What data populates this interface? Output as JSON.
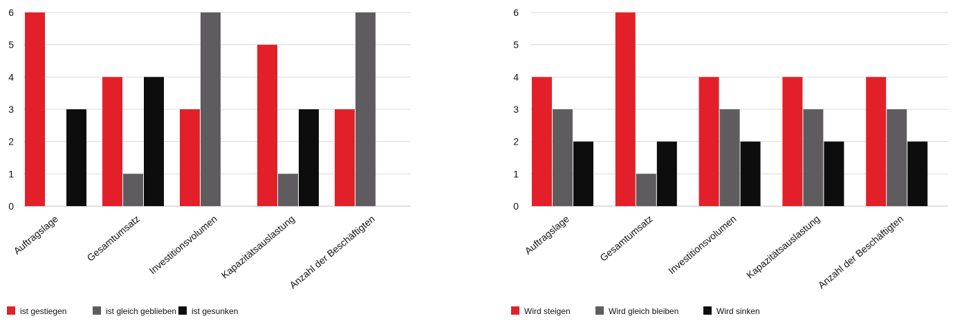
{
  "chart_data": [
    {
      "type": "bar",
      "categories": [
        "Auftragslage",
        "Gesamtumsatz",
        "Investitionsvolumen",
        "Kapazitätsauslastung",
        "Anzahl der Beschäftigten"
      ],
      "series": [
        {
          "name": "ist gestiegen",
          "color": "#e3202a",
          "values": [
            6,
            4,
            3,
            5,
            3
          ]
        },
        {
          "name": "ist gleich geblieben",
          "color": "#5e5c5e",
          "values": [
            0,
            1,
            6,
            1,
            6
          ]
        },
        {
          "name": "ist gesunken",
          "color": "#0d0d0d",
          "values": [
            3,
            4,
            0,
            3,
            0
          ]
        }
      ],
      "yticks": [
        "0",
        "1",
        "2",
        "3",
        "4",
        "5",
        "6"
      ],
      "ylim": [
        0,
        6
      ],
      "grid": true,
      "legend": "bottom-left"
    },
    {
      "type": "bar",
      "categories": [
        "Auftragslage",
        "Gesamtumsatz",
        "Investitionsvolumen",
        "Kapazitätsauslastung",
        "Anzahl der Beschäftigten"
      ],
      "series": [
        {
          "name": "Wird steigen",
          "color": "#e3202a",
          "values": [
            4,
            6,
            4,
            4,
            4
          ]
        },
        {
          "name": "Wird gleich bleiben",
          "color": "#5e5c5e",
          "values": [
            3,
            1,
            3,
            3,
            3
          ]
        },
        {
          "name": "Wird sinken",
          "color": "#0d0d0d",
          "values": [
            2,
            2,
            2,
            2,
            2
          ]
        }
      ],
      "yticks": [
        "0",
        "1",
        "2",
        "3",
        "4",
        "5",
        "6"
      ],
      "ylim": [
        0,
        6
      ],
      "grid": true,
      "legend": "bottom-left"
    }
  ]
}
